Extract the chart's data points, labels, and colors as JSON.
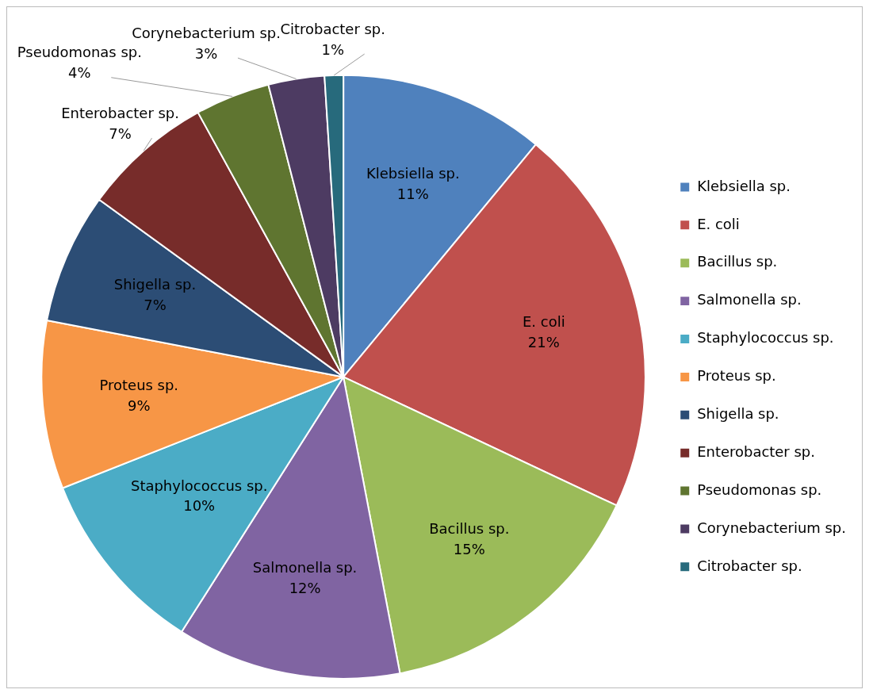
{
  "chart_data": {
    "type": "pie",
    "categories": [
      "Klebsiella sp.",
      "E. coli",
      "Bacillus sp.",
      "Salmonella sp.",
      "Staphylococcus sp.",
      "Proteus sp.",
      "Shigella sp.",
      "Enterobacter sp.",
      "Pseudomonas sp.",
      "Corynebacterium sp.",
      "Citrobacter sp."
    ],
    "values": [
      11,
      21,
      15,
      12,
      10,
      9,
      7,
      7,
      4,
      3,
      1
    ],
    "value_labels": [
      "11%",
      "21%",
      "15%",
      "12%",
      "10%",
      "9%",
      "7%",
      "7%",
      "4%",
      "3%",
      "1%"
    ],
    "colors": [
      "#4f81bd",
      "#c0504d",
      "#9bbb59",
      "#8064a2",
      "#4bacc6",
      "#f79646",
      "#2c4d75",
      "#772c2a",
      "#5f7530",
      "#4d3b62",
      "#276a7c"
    ],
    "legend": "right"
  }
}
